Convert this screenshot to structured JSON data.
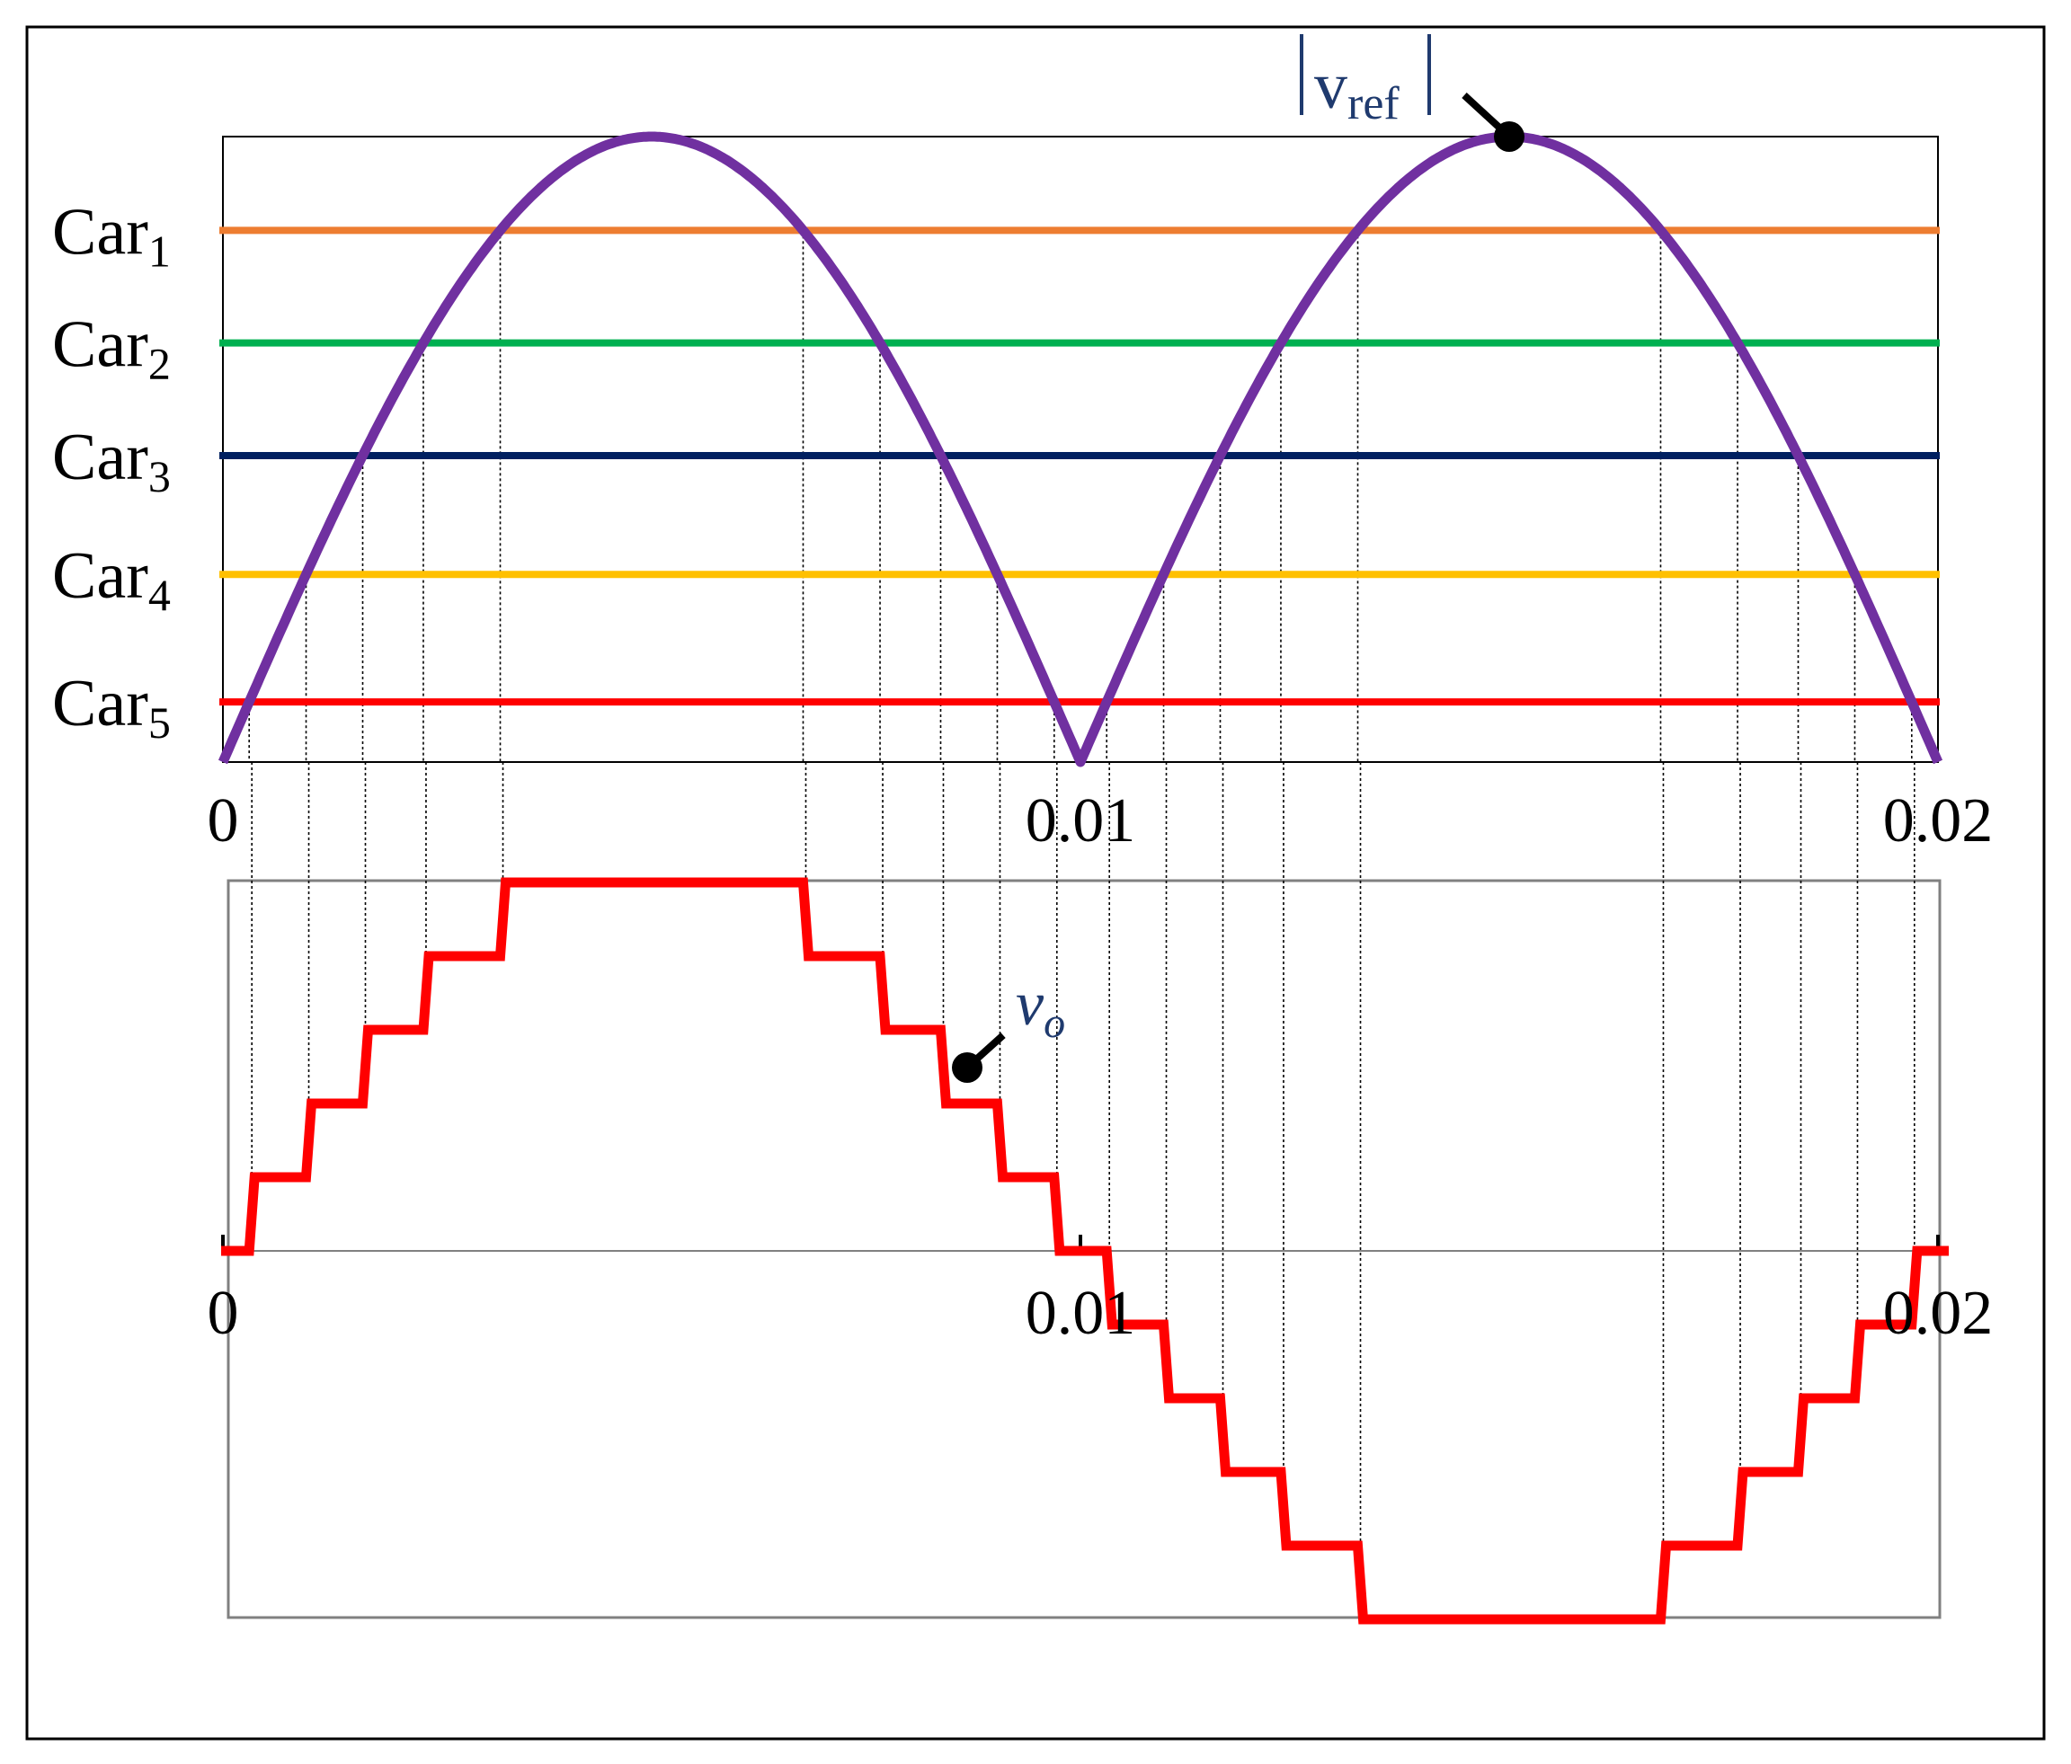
{
  "chart_data": [
    {
      "type": "line",
      "title": "",
      "xlabel": "",
      "ylabel": "",
      "xlim": [
        0,
        0.02
      ],
      "ylim": [
        0,
        1
      ],
      "x_ticks": [
        "0",
        "0.01",
        "0.02"
      ],
      "grid": false,
      "reference": {
        "name": "|vref|",
        "label_main": "v",
        "label_sub": "ref",
        "description": "rectified sine, period 0.02, peak 1",
        "color": "#7030a0"
      },
      "carriers": [
        {
          "name": "Car",
          "sub": "1",
          "level": 0.85,
          "color": "#ed7d31"
        },
        {
          "name": "Car",
          "sub": "2",
          "level": 0.67,
          "color": "#00b050"
        },
        {
          "name": "Car",
          "sub": "3",
          "level": 0.49,
          "color": "#002060"
        },
        {
          "name": "Car",
          "sub": "4",
          "level": 0.3,
          "color": "#ffc000"
        },
        {
          "name": "Car",
          "sub": "5",
          "level": 0.096,
          "color": "#ff0000"
        }
      ]
    },
    {
      "type": "line",
      "title": "",
      "xlabel": "",
      "ylabel": "",
      "xlim": [
        0,
        0.02
      ],
      "ylim": [
        -5,
        5
      ],
      "x_ticks": [
        "0",
        "0.01",
        "0.02"
      ],
      "grid": false,
      "series": [
        {
          "name": "vo",
          "label_main": "v",
          "label_sub": "o",
          "description": "11-level staircase output voltage",
          "color": "#ff0000"
        }
      ]
    }
  ]
}
